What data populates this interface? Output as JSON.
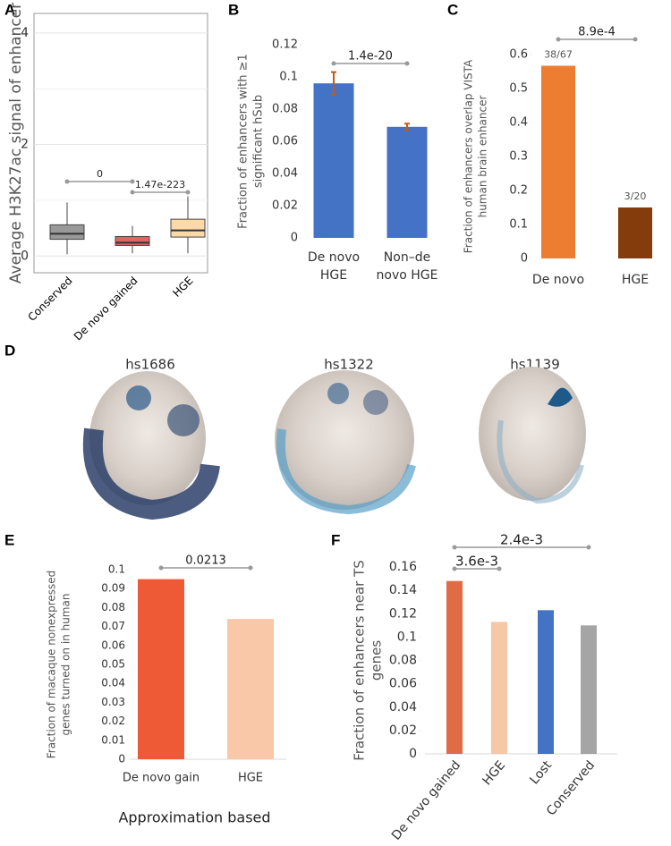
{
  "chart_data": [
    {
      "type": "box",
      "panel": "A",
      "ylabel": [
        "Average H3K27ac signal of enhancer"
      ],
      "categories": [
        "Conserved",
        "De novo gained",
        "HGE"
      ],
      "boxes": [
        {
          "low": 0.03,
          "q1": 0.3,
          "median": 0.4,
          "q3": 0.56,
          "high": 0.96,
          "color": "#999999"
        },
        {
          "low": 0.05,
          "q1": 0.19,
          "median": 0.24,
          "q3": 0.35,
          "high": 0.54,
          "color": "#e06666"
        },
        {
          "low": 0.05,
          "q1": 0.34,
          "median": 0.46,
          "q3": 0.66,
          "high": 1.07,
          "color": "#fdd9a8"
        }
      ],
      "ylim": [
        -0.3,
        4.35
      ],
      "yticks": [
        0,
        2,
        4
      ],
      "minor_yticks": [
        1,
        3
      ],
      "grid": true,
      "annotations": [
        "0",
        "1.47e-223"
      ]
    },
    {
      "type": "bar",
      "panel": "B",
      "ylabel": [
        "Fraction of enhancers with ≥1",
        "significant hSub"
      ],
      "categories": [
        [
          "De novo",
          "HGE"
        ],
        [
          "Non–de",
          "novo HGE"
        ]
      ],
      "values": [
        0.096,
        0.069
      ],
      "errors": [
        0.007,
        0.002
      ],
      "color": "#4472c4",
      "error_color": "#c55a11",
      "ylim": [
        0,
        0.12
      ],
      "yticks": [
        0,
        0.02,
        0.04,
        0.06,
        0.08,
        0.1,
        0.12
      ],
      "annotations": [
        "1.4e-20"
      ]
    },
    {
      "type": "bar",
      "panel": "C",
      "ylabel": [
        "Fraction of enhancers overlap VISTA",
        "human brain enhancer"
      ],
      "categories": [
        [
          "De novo"
        ],
        [
          "HGE"
        ]
      ],
      "values": [
        0.567,
        0.15
      ],
      "value_labels": [
        "38/67",
        "3/20"
      ],
      "colors": [
        "#ed7d31",
        "#843c0c"
      ],
      "ylim": [
        0,
        0.6
      ],
      "yticks": [
        0,
        0.1,
        0.2,
        0.3,
        0.4,
        0.5,
        0.6
      ],
      "annotations": [
        "8.9e-4"
      ]
    },
    {
      "type": "bar",
      "panel": "E",
      "ylabel": [
        "Fraction of macaque nonexpressed",
        "genes turned on in human"
      ],
      "xlabel": "Approximation based",
      "categories": [
        [
          "De novo gain"
        ],
        [
          "HGE"
        ]
      ],
      "values": [
        0.095,
        0.074
      ],
      "colors": [
        "#ee5a35",
        "#f8c8a8"
      ],
      "ylim": [
        0,
        0.1
      ],
      "yticks": [
        0,
        0.01,
        0.02,
        0.03,
        0.04,
        0.05,
        0.06,
        0.07,
        0.08,
        0.09,
        0.1
      ],
      "annotations": [
        "0.0213"
      ]
    },
    {
      "type": "bar",
      "panel": "F",
      "ylabel": [
        "Fraction of enhancers near TS",
        "genes"
      ],
      "categories": [
        [
          "De novo gained"
        ],
        [
          "HGE"
        ],
        [
          "Lost"
        ],
        [
          "Conserved"
        ]
      ],
      "values": [
        0.148,
        0.113,
        0.123,
        0.11
      ],
      "colors": [
        "#e06c45",
        "#f5c8a8",
        "#4472c4",
        "#a5a5a5"
      ],
      "ylim": [
        0,
        0.16
      ],
      "yticks": [
        0,
        0.02,
        0.04,
        0.06,
        0.08,
        0.1,
        0.12,
        0.14,
        0.16
      ],
      "annotations": [
        "3.6e-3",
        "2.4e-3"
      ]
    }
  ],
  "figure_d": {
    "panel": "D",
    "labels": [
      "hs1686",
      "hs1322",
      "hs1139"
    ]
  }
}
